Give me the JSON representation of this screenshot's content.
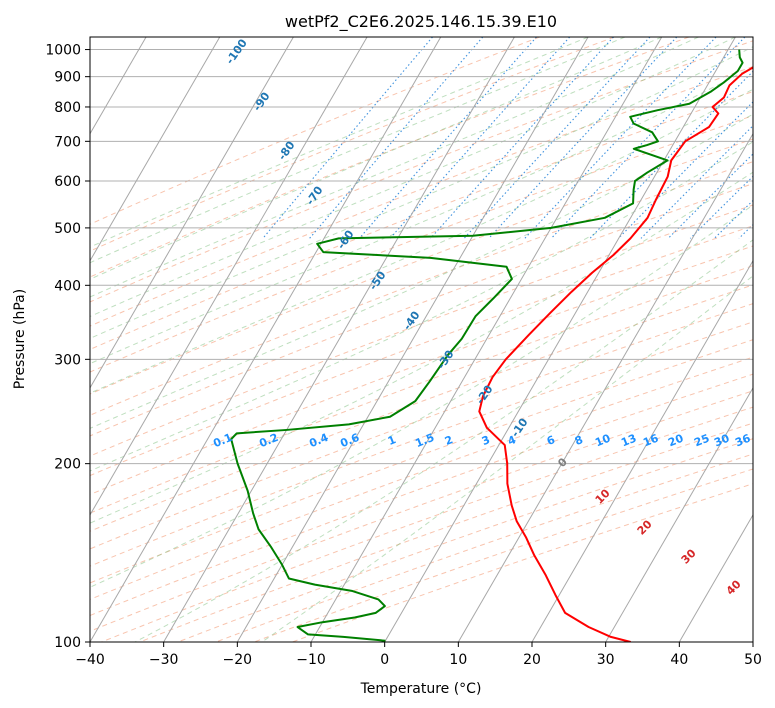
{
  "chart_data": {
    "type": "line",
    "chart_kind": "skew-T log-P diagram",
    "title": "wetPf2_C2E6.2025.146.15.39.E10",
    "xlabel": "Temperature (°C)",
    "ylabel": "Pressure (hPa)",
    "xlim": [
      -40,
      50
    ],
    "ylim": [
      1050,
      100
    ],
    "y_scale": "log",
    "x_ticks": [
      -40,
      -30,
      -20,
      -10,
      0,
      10,
      20,
      30,
      40,
      50
    ],
    "y_ticks": [
      1000,
      900,
      800,
      700,
      600,
      500,
      400,
      300,
      200,
      100
    ],
    "grid": true,
    "series": [
      {
        "role": "temperature",
        "color": "#ff0000",
        "points": [
          [
            10.8,
            1000
          ],
          [
            5.5,
            950
          ],
          [
            3.8,
            910
          ],
          [
            3.0,
            870
          ],
          [
            3.2,
            830
          ],
          [
            2.4,
            800
          ],
          [
            3.7,
            780
          ],
          [
            3.5,
            740
          ],
          [
            1.4,
            700
          ],
          [
            1.0,
            650
          ],
          [
            1.8,
            610
          ],
          [
            2.0,
            560
          ],
          [
            2.3,
            520
          ],
          [
            1.6,
            480
          ],
          [
            0.6,
            450
          ],
          [
            -0.9,
            420
          ],
          [
            -2.2,
            390
          ],
          [
            -3.4,
            360
          ],
          [
            -4.6,
            330
          ],
          [
            -5.8,
            300
          ],
          [
            -6.2,
            280
          ],
          [
            -6.0,
            260
          ],
          [
            -5.3,
            245
          ],
          [
            -3.0,
            230
          ],
          [
            0.8,
            215
          ],
          [
            2.6,
            200
          ],
          [
            4.2,
            185
          ],
          [
            6.5,
            170
          ],
          [
            8.4,
            160
          ],
          [
            11.0,
            150
          ],
          [
            13.5,
            140
          ],
          [
            16.5,
            130
          ],
          [
            19.5,
            120
          ],
          [
            22.2,
            112
          ],
          [
            26.5,
            106
          ],
          [
            30.3,
            102
          ],
          [
            33.4,
            100
          ]
        ]
      },
      {
        "role": "dewpoint",
        "color": "#008000",
        "points": [
          [
            1.5,
            1000
          ],
          [
            2.2,
            970
          ],
          [
            3.0,
            950
          ],
          [
            3.0,
            920
          ],
          [
            2.0,
            880
          ],
          [
            1.0,
            850
          ],
          [
            -1.0,
            810
          ],
          [
            -4.8,
            790
          ],
          [
            -8.0,
            770
          ],
          [
            -7.0,
            750
          ],
          [
            -3.8,
            725
          ],
          [
            -2.3,
            700
          ],
          [
            -3.5,
            690
          ],
          [
            -5.0,
            680
          ],
          [
            0.5,
            650
          ],
          [
            -1.3,
            620
          ],
          [
            -2.3,
            600
          ],
          [
            -1.8,
            580
          ],
          [
            -0.8,
            550
          ],
          [
            -3.5,
            520
          ],
          [
            -10.0,
            500
          ],
          [
            -20.0,
            485
          ],
          [
            -38.0,
            480
          ],
          [
            -40.5,
            470
          ],
          [
            -39.0,
            455
          ],
          [
            -24.0,
            445
          ],
          [
            -13.0,
            430
          ],
          [
            -11.3,
            410
          ],
          [
            -12.3,
            380
          ],
          [
            -13.3,
            355
          ],
          [
            -13.4,
            325
          ],
          [
            -14.0,
            305
          ],
          [
            -14.4,
            275
          ],
          [
            -14.8,
            255
          ],
          [
            -17.0,
            240
          ],
          [
            -22.0,
            233
          ],
          [
            -30.0,
            228
          ],
          [
            -36.5,
            225
          ],
          [
            -36.8,
            220
          ],
          [
            -34.0,
            200
          ],
          [
            -30.5,
            180
          ],
          [
            -28.0,
            165
          ],
          [
            -26.0,
            155
          ],
          [
            -23.0,
            145
          ],
          [
            -20.0,
            135
          ],
          [
            -18.0,
            128
          ],
          [
            -14.0,
            125
          ],
          [
            -8.5,
            122
          ],
          [
            -4.2,
            118
          ],
          [
            -2.8,
            115
          ],
          [
            -3.5,
            112
          ],
          [
            -6.0,
            110
          ],
          [
            -10.0,
            108
          ],
          [
            -13.0,
            106
          ],
          [
            -11.0,
            103
          ],
          [
            -6.0,
            102
          ],
          [
            0.0,
            100.5
          ]
        ]
      }
    ],
    "dry_adiabat_labels": [
      "-100",
      "-90",
      "-80",
      "-70",
      "-60",
      "-50",
      "-40",
      "-30",
      "-20",
      "-10"
    ],
    "mixing_ratio_labels": [
      "0.1",
      "0.2",
      "0.4",
      "0.6",
      "1",
      "1.5",
      "2",
      "3",
      "4",
      "6",
      "8",
      "10",
      "13",
      "16",
      "20",
      "25",
      "30",
      "36"
    ],
    "moist_adiabat_labels": [
      "0",
      "10",
      "20",
      "30",
      "40"
    ],
    "colors": {
      "dry_adiabat_label": "#1f77b4",
      "mixing_ratio_label": "#1e90ff",
      "moist_adiabat_label": "#d62728",
      "zero_moist_label": "#808080"
    }
  }
}
